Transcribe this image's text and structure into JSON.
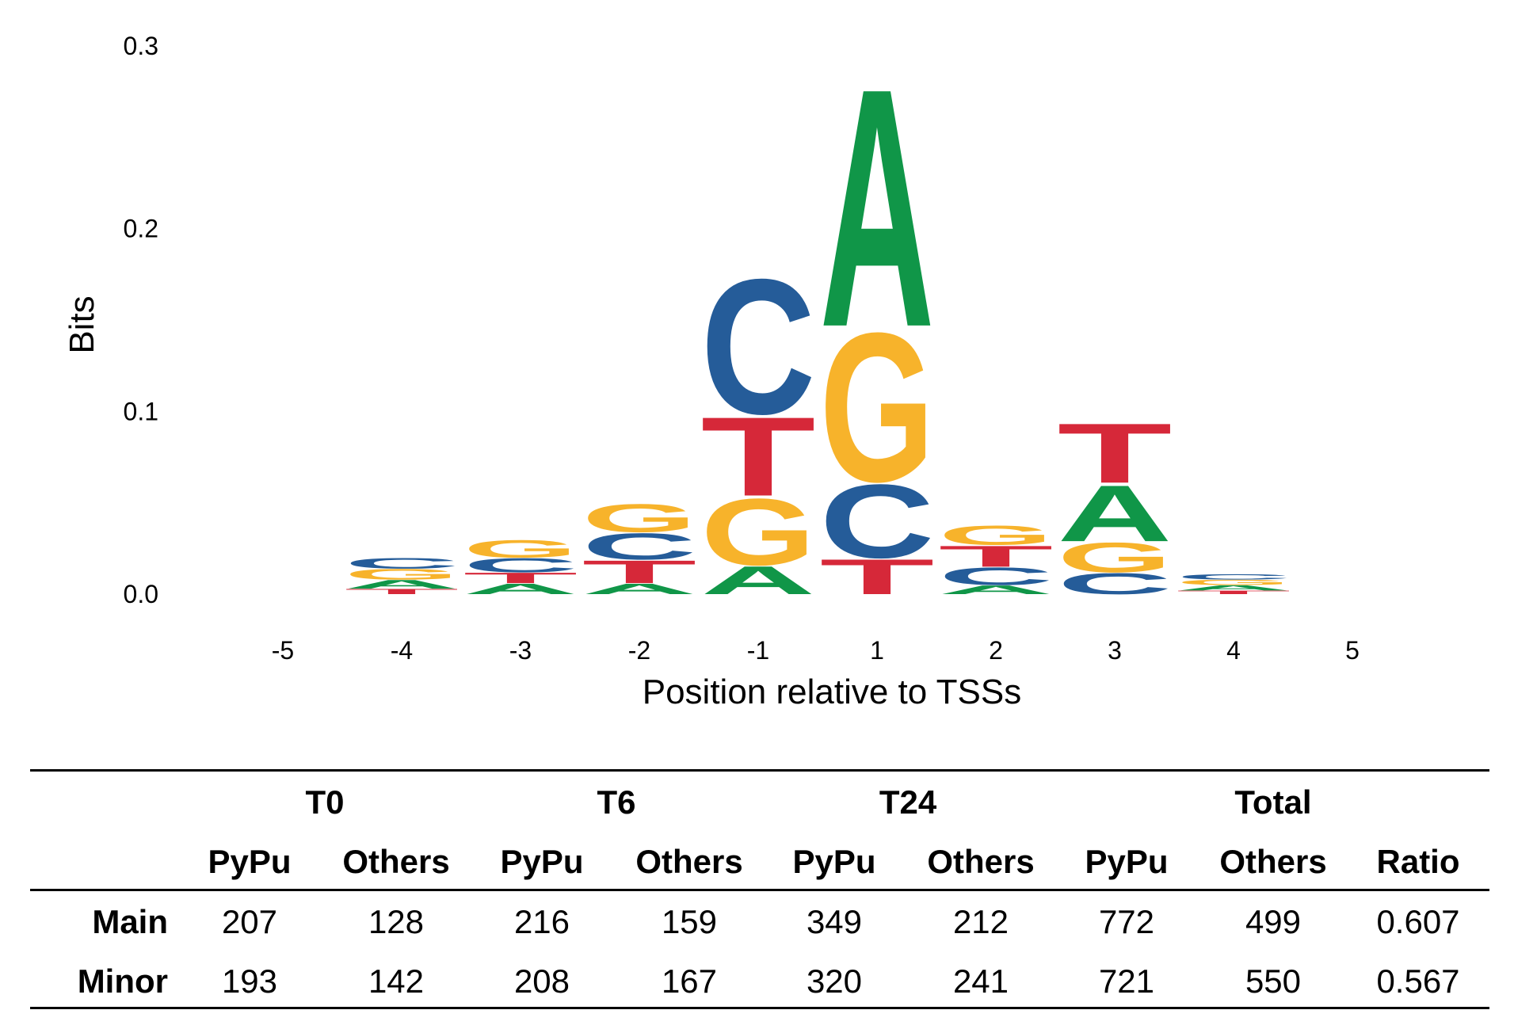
{
  "chart_data": [
    {
      "type": "sequence-logo",
      "title": "",
      "ylabel": "Bits",
      "xlabel": "Position relative to TSSs",
      "ylim": [
        0.0,
        0.3
      ],
      "yticks": [
        "0.0",
        "0.1",
        "0.2",
        "0.3"
      ],
      "x_tick_labels": [
        "-5",
        "-4",
        "-3",
        "-2",
        "-1",
        "1",
        "2",
        "3",
        "4",
        "5"
      ],
      "colors": {
        "A": "#109648",
        "C": "#255C99",
        "G": "#F7B32B",
        "T": "#D62839"
      },
      "positions": [
        {
          "position": "-5",
          "stack": []
        },
        {
          "position": "-4",
          "stack": [
            {
              "base": "T",
              "bits": 0.003
            },
            {
              "base": "A",
              "bits": 0.005
            },
            {
              "base": "G",
              "bits": 0.006
            },
            {
              "base": "C",
              "bits": 0.006
            }
          ]
        },
        {
          "position": "-3",
          "stack": [
            {
              "base": "A",
              "bits": 0.006
            },
            {
              "base": "T",
              "bits": 0.006
            },
            {
              "base": "C",
              "bits": 0.008
            },
            {
              "base": "G",
              "bits": 0.01
            }
          ]
        },
        {
          "position": "-2",
          "stack": [
            {
              "base": "A",
              "bits": 0.006
            },
            {
              "base": "T",
              "bits": 0.013
            },
            {
              "base": "C",
              "bits": 0.015
            },
            {
              "base": "G",
              "bits": 0.016
            }
          ]
        },
        {
          "position": "-1",
          "stack": [
            {
              "base": "A",
              "bits": 0.016
            },
            {
              "base": "G",
              "bits": 0.038
            },
            {
              "base": "T",
              "bits": 0.045
            },
            {
              "base": "C",
              "bits": 0.077
            }
          ]
        },
        {
          "position": "1",
          "stack": [
            {
              "base": "T",
              "bits": 0.02
            },
            {
              "base": "C",
              "bits": 0.042
            },
            {
              "base": "G",
              "bits": 0.085
            },
            {
              "base": "A",
              "bits": 0.136
            }
          ]
        },
        {
          "position": "2",
          "stack": [
            {
              "base": "A",
              "bits": 0.005
            },
            {
              "base": "C",
              "bits": 0.01
            },
            {
              "base": "T",
              "bits": 0.012
            },
            {
              "base": "G",
              "bits": 0.011
            }
          ]
        },
        {
          "position": "3",
          "stack": [
            {
              "base": "C",
              "bits": 0.012
            },
            {
              "base": "G",
              "bits": 0.017
            },
            {
              "base": "A",
              "bits": 0.032
            },
            {
              "base": "T",
              "bits": 0.034
            }
          ]
        },
        {
          "position": "4",
          "stack": [
            {
              "base": "T",
              "bits": 0.002
            },
            {
              "base": "A",
              "bits": 0.003
            },
            {
              "base": "G",
              "bits": 0.003
            },
            {
              "base": "C",
              "bits": 0.003
            }
          ]
        },
        {
          "position": "5",
          "stack": []
        }
      ]
    },
    {
      "type": "table",
      "group_headers": [
        "T0",
        "T6",
        "T24",
        "Total"
      ],
      "column_headers": [
        "PyPu",
        "Others",
        "PyPu",
        "Others",
        "PyPu",
        "Others",
        "PyPu",
        "Others",
        "Ratio"
      ],
      "rows": [
        {
          "label": "Main",
          "values": [
            "207",
            "128",
            "216",
            "159",
            "349",
            "212",
            "772",
            "499",
            "0.607"
          ]
        },
        {
          "label": "Minor",
          "values": [
            "193",
            "142",
            "208",
            "167",
            "320",
            "241",
            "721",
            "550",
            "0.567"
          ]
        }
      ]
    }
  ]
}
